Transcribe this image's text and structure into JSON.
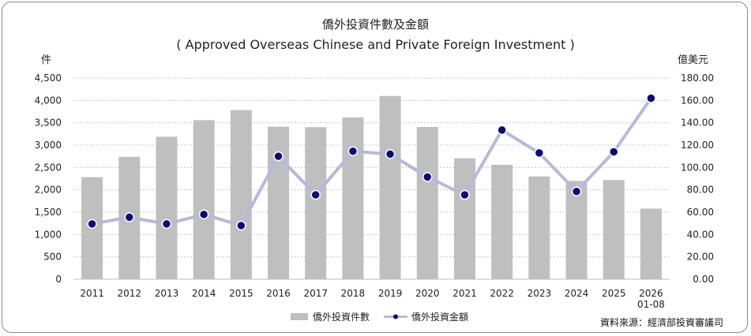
{
  "chart_data": {
    "type": "bar",
    "title": "僑外投資件數及金額",
    "subtitle": "( Approved Overseas Chinese and Private Foreign Investment )",
    "y_left_unit": "件",
    "y_right_unit": "億美元",
    "categories": [
      "2011",
      "2012",
      "2013",
      "2014",
      "2015",
      "2016",
      "2017",
      "2018",
      "2019",
      "2020",
      "2021",
      "2022",
      "2023",
      "2024",
      "2025",
      "2026\n01-08"
    ],
    "series": [
      {
        "name": "僑外投資件數",
        "kind": "bar",
        "axis": "left",
        "color": "#bfbfbf",
        "values": [
          2283,
          2738,
          3188,
          3559,
          3783,
          3412,
          3402,
          3620,
          4100,
          3406,
          2705,
          2560,
          2300,
          2200,
          2220,
          1580
        ]
      },
      {
        "name": "僑外投資金額",
        "kind": "line",
        "axis": "right",
        "line_color": "#b8b8dc",
        "marker_color": "#0a0a7a",
        "values": [
          49.5,
          55.5,
          49.5,
          58.0,
          48.0,
          110.0,
          75.5,
          114.5,
          112.0,
          91.5,
          75.5,
          133.5,
          113.0,
          78.5,
          114.0,
          162.0
        ]
      }
    ],
    "y_left_ticks": [
      "0",
      "500",
      "1,000",
      "1,500",
      "2,000",
      "2,500",
      "3,000",
      "3,500",
      "4,000",
      "4,500"
    ],
    "y_left_lim": [
      0,
      4500
    ],
    "y_right_ticks": [
      "0.00",
      "20.00",
      "40.00",
      "60.00",
      "80.00",
      "100.00",
      "120.00",
      "140.00",
      "160.00",
      "180.00"
    ],
    "y_right_lim": [
      0,
      180
    ],
    "grid": true,
    "legend_position": "bottom"
  },
  "source_note": "資料來源：經濟部投資審議司"
}
